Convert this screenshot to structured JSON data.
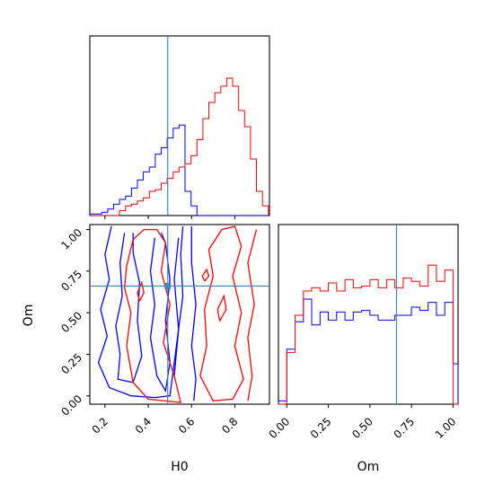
{
  "chart_data": {
    "type": "corner",
    "parameters": [
      "H0",
      "Om"
    ],
    "truth": {
      "H0": 0.49,
      "Om": 0.66
    },
    "colors": {
      "blue": "#0000ff",
      "red": "#ff0000",
      "truth": "#4682b4"
    },
    "axes": {
      "H0": {
        "range": [
          0.13,
          0.96
        ],
        "ticks": [
          "0.2",
          "0.4",
          "0.6",
          "0.8"
        ],
        "tick_values": [
          0.2,
          0.4,
          0.6,
          0.8
        ],
        "label": "H0"
      },
      "Om": {
        "range": [
          -0.05,
          1.03
        ],
        "ticks": [
          "0.00",
          "0.25",
          "0.50",
          "0.75",
          "1.00"
        ],
        "tick_values": [
          0.0,
          0.25,
          0.5,
          0.75,
          1.0
        ],
        "label": "Om"
      }
    },
    "hist_H0": {
      "bin_edges": [
        0.13,
        0.1575,
        0.185,
        0.2125,
        0.24,
        0.2675,
        0.295,
        0.3225,
        0.35,
        0.3775,
        0.405,
        0.4325,
        0.46,
        0.4875,
        0.515,
        0.5425,
        0.57,
        0.5975,
        0.625,
        0.6525,
        0.68,
        0.7075,
        0.735,
        0.7625,
        0.79,
        0.8175,
        0.845,
        0.8725,
        0.9,
        0.9275,
        0.955
      ],
      "ymax": 1.0,
      "series": [
        {
          "name": "blue",
          "color": "#0000ff",
          "values": [
            0.01,
            0.01,
            0.02,
            0.04,
            0.07,
            0.1,
            0.12,
            0.17,
            0.22,
            0.27,
            0.3,
            0.38,
            0.42,
            0.48,
            0.54,
            0.56,
            0.15,
            0.06,
            0.0,
            0.0,
            0.0,
            0.0,
            0.0,
            0.0,
            0.0,
            0.0,
            0.0,
            0.0,
            0.0,
            0.0
          ]
        },
        {
          "name": "red",
          "color": "#ff0000",
          "values": [
            0.0,
            0.0,
            0.0,
            0.0,
            0.0,
            0.03,
            0.06,
            0.07,
            0.09,
            0.11,
            0.15,
            0.16,
            0.2,
            0.23,
            0.27,
            0.3,
            0.32,
            0.37,
            0.47,
            0.6,
            0.7,
            0.76,
            0.8,
            0.85,
            0.8,
            0.65,
            0.55,
            0.35,
            0.15,
            0.06
          ]
        }
      ]
    },
    "hist_Om": {
      "bin_edges": [
        -0.05,
        0.0,
        0.05,
        0.1,
        0.15,
        0.2,
        0.25,
        0.3,
        0.35,
        0.4,
        0.45,
        0.5,
        0.55,
        0.6,
        0.65,
        0.7,
        0.75,
        0.8,
        0.85,
        0.9,
        0.95,
        1.0,
        1.03
      ],
      "ymax": 1.0,
      "series": [
        {
          "name": "blue",
          "color": "#0000ff",
          "values": [
            0.02,
            0.34,
            0.51,
            0.65,
            0.49,
            0.57,
            0.52,
            0.57,
            0.52,
            0.57,
            0.58,
            0.55,
            0.52,
            0.52,
            0.55,
            0.55,
            0.6,
            0.58,
            0.63,
            0.55,
            0.63,
            0.25
          ]
        },
        {
          "name": "red",
          "color": "#ff0000",
          "values": [
            0.0,
            0.32,
            0.55,
            0.7,
            0.72,
            0.7,
            0.75,
            0.7,
            0.77,
            0.72,
            0.73,
            0.77,
            0.72,
            0.77,
            0.72,
            0.78,
            0.76,
            0.73,
            0.86,
            0.76,
            0.83,
            0.0
          ]
        }
      ]
    },
    "contours_H0_Om": [
      {
        "color": "#0000ff",
        "points": [
          [
            0.23,
            1.02
          ],
          [
            0.2,
            0.85
          ],
          [
            0.22,
            0.7
          ],
          [
            0.18,
            0.52
          ],
          [
            0.21,
            0.36
          ],
          [
            0.17,
            0.2
          ],
          [
            0.22,
            0.05
          ],
          [
            0.32,
            0.0
          ],
          [
            0.43,
            -0.01
          ],
          [
            0.5,
            0.0
          ],
          [
            0.53,
            0.3
          ],
          [
            0.56,
            0.6
          ],
          [
            0.55,
            0.85
          ],
          [
            0.56,
            1.02
          ]
        ]
      },
      {
        "color": "#0000ff",
        "points": [
          [
            0.29,
            0.98
          ],
          [
            0.27,
            0.8
          ],
          [
            0.28,
            0.6
          ],
          [
            0.25,
            0.42
          ],
          [
            0.27,
            0.25
          ],
          [
            0.26,
            0.1
          ],
          [
            0.33,
            0.08
          ],
          [
            0.37,
            0.24
          ],
          [
            0.35,
            0.45
          ],
          [
            0.36,
            0.68
          ],
          [
            0.33,
            0.86
          ],
          [
            0.33,
            0.98
          ]
        ]
      },
      {
        "color": "#0000ff",
        "points": [
          [
            0.43,
            0.95
          ],
          [
            0.41,
            0.75
          ],
          [
            0.43,
            0.55
          ],
          [
            0.41,
            0.35
          ],
          [
            0.44,
            0.12
          ],
          [
            0.48,
            0.03
          ],
          [
            0.5,
            0.2
          ],
          [
            0.48,
            0.45
          ],
          [
            0.5,
            0.7
          ],
          [
            0.48,
            0.92
          ],
          [
            0.46,
            0.98
          ]
        ]
      },
      {
        "color": "#0000ff",
        "points": [
          [
            0.6,
            1.02
          ],
          [
            0.6,
            0.8
          ],
          [
            0.62,
            0.55
          ],
          [
            0.6,
            0.3
          ],
          [
            0.62,
            0.1
          ],
          [
            0.61,
            -0.03
          ]
        ]
      },
      {
        "color": "#0000ff",
        "points": [
          [
            0.54,
            0.95
          ],
          [
            0.52,
            0.7
          ],
          [
            0.54,
            0.4
          ],
          [
            0.52,
            0.12
          ]
        ]
      },
      {
        "color": "#ff0000",
        "points": [
          [
            0.3,
            0.78
          ],
          [
            0.33,
            0.94
          ],
          [
            0.38,
            1.0
          ],
          [
            0.44,
            1.0
          ],
          [
            0.48,
            0.92
          ],
          [
            0.46,
            0.75
          ],
          [
            0.5,
            0.55
          ],
          [
            0.47,
            0.32
          ],
          [
            0.52,
            0.12
          ],
          [
            0.55,
            -0.04
          ],
          [
            0.4,
            -0.02
          ],
          [
            0.33,
            0.08
          ],
          [
            0.3,
            0.3
          ],
          [
            0.32,
            0.5
          ],
          [
            0.29,
            0.65
          ],
          [
            0.3,
            0.78
          ]
        ]
      },
      {
        "color": "#ff0000",
        "points": [
          [
            0.66,
            0.52
          ],
          [
            0.7,
            0.72
          ],
          [
            0.68,
            0.88
          ],
          [
            0.74,
            1.0
          ],
          [
            0.8,
            1.02
          ],
          [
            0.83,
            0.9
          ],
          [
            0.79,
            0.72
          ],
          [
            0.83,
            0.5
          ],
          [
            0.8,
            0.3
          ],
          [
            0.84,
            0.1
          ],
          [
            0.79,
            -0.02
          ],
          [
            0.7,
            -0.03
          ],
          [
            0.64,
            0.12
          ],
          [
            0.67,
            0.3
          ],
          [
            0.66,
            0.52
          ]
        ]
      },
      {
        "color": "#ff0000",
        "points": [
          [
            0.9,
            1.0
          ],
          [
            0.86,
            0.8
          ],
          [
            0.89,
            0.55
          ],
          [
            0.86,
            0.35
          ],
          [
            0.88,
            0.12
          ],
          [
            0.86,
            -0.03
          ]
        ]
      },
      {
        "color": "#ff0000",
        "points": [
          [
            0.36,
            0.57
          ],
          [
            0.38,
            0.62
          ],
          [
            0.37,
            0.68
          ],
          [
            0.35,
            0.62
          ],
          [
            0.36,
            0.57
          ]
        ]
      },
      {
        "color": "#ff0000",
        "points": [
          [
            0.73,
            0.45
          ],
          [
            0.76,
            0.52
          ],
          [
            0.75,
            0.6
          ],
          [
            0.72,
            0.52
          ],
          [
            0.73,
            0.45
          ]
        ]
      },
      {
        "color": "#ff0000",
        "points": [
          [
            0.66,
            0.69
          ],
          [
            0.68,
            0.72
          ],
          [
            0.67,
            0.76
          ],
          [
            0.65,
            0.72
          ],
          [
            0.66,
            0.69
          ]
        ]
      }
    ]
  }
}
